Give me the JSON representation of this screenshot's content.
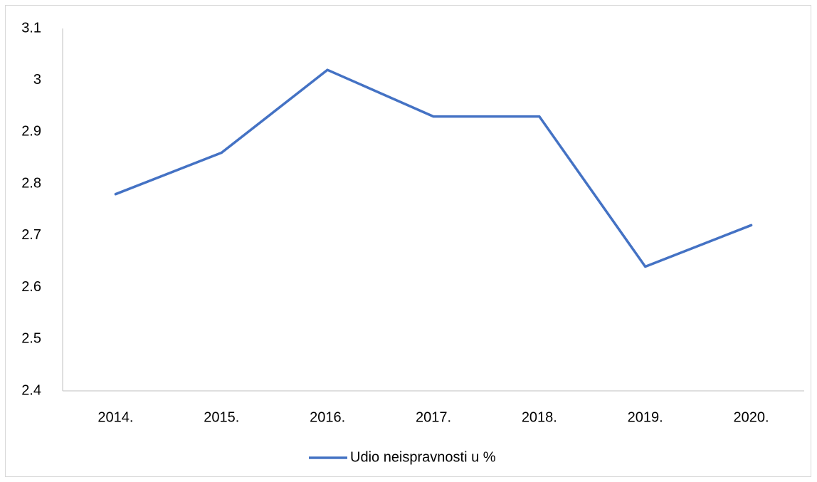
{
  "chart_data": {
    "type": "line",
    "categories": [
      "2014.",
      "2015.",
      "2016.",
      "2017.",
      "2018.",
      "2019.",
      "2020."
    ],
    "series": [
      {
        "name": "Udio neispravnosti u %",
        "color": "#4472c4",
        "values": [
          2.78,
          2.86,
          3.02,
          2.93,
          2.93,
          2.64,
          2.72
        ]
      }
    ],
    "ylim": [
      2.4,
      3.1
    ],
    "yticks": [
      2.4,
      2.5,
      2.6,
      2.7,
      2.8,
      2.9,
      3,
      3.1
    ],
    "grid": false,
    "legend": "bottom"
  }
}
